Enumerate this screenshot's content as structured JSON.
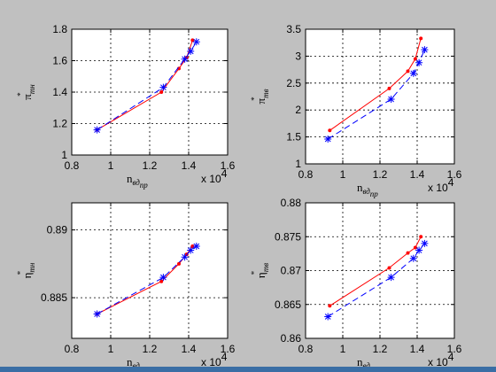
{
  "window": {
    "background": "#c0c0c0",
    "taskbar_color": "#3a6ea5"
  },
  "chart_data": [
    {
      "type": "line",
      "xlabel": "n",
      "xlabel_sub": "вд",
      "xlabel_sub2": "пр",
      "ylabel": "π",
      "ylabel_sup": "*",
      "ylabel_sub": "тн",
      "x_multiplier": "x 10",
      "x_multiplier_exp": "4",
      "xlim": [
        0.8,
        1.6
      ],
      "ylim": [
        1.0,
        1.8
      ],
      "xticks": [
        "0.8",
        "1",
        "1.2",
        "1.4",
        "1.6"
      ],
      "yticks": [
        "1",
        "1.2",
        "1.4",
        "1.6",
        "1.8"
      ],
      "grid": true,
      "series": [
        {
          "color": "#ff0000",
          "line_style": "solid",
          "marker": "dot",
          "x": [
            0.93,
            1.26,
            1.35,
            1.39,
            1.42
          ],
          "y": [
            1.16,
            1.4,
            1.55,
            1.62,
            1.73
          ]
        },
        {
          "color": "#0000ff",
          "line_style": "dashed",
          "marker": "star",
          "x": [
            0.93,
            1.27,
            1.38,
            1.41,
            1.44
          ],
          "y": [
            1.16,
            1.43,
            1.61,
            1.66,
            1.72
          ]
        }
      ]
    },
    {
      "type": "line",
      "xlabel": "n",
      "xlabel_sub": "вд",
      "xlabel_sub2": "пр",
      "ylabel": "π",
      "ylabel_sup": "*",
      "ylabel_sub": "тв",
      "x_multiplier": "x 10",
      "x_multiplier_exp": "4",
      "xlim": [
        0.8,
        1.6
      ],
      "ylim": [
        1.0,
        3.5
      ],
      "xticks": [
        "0.8",
        "1",
        "1.2",
        "1.4",
        "1.6"
      ],
      "yticks": [
        "1",
        "1.5",
        "2",
        "2.5",
        "3",
        "3.5"
      ],
      "grid": true,
      "series": [
        {
          "color": "#ff0000",
          "line_style": "solid",
          "marker": "dot",
          "x": [
            0.93,
            1.25,
            1.35,
            1.39,
            1.42
          ],
          "y": [
            1.62,
            2.4,
            2.72,
            2.95,
            3.33
          ]
        },
        {
          "color": "#0000ff",
          "line_style": "dashed",
          "marker": "star",
          "x": [
            0.92,
            1.26,
            1.38,
            1.41,
            1.44
          ],
          "y": [
            1.46,
            2.2,
            2.68,
            2.88,
            3.12
          ]
        }
      ]
    },
    {
      "type": "line",
      "xlabel": "n",
      "xlabel_sub": "вд",
      "xlabel_sub2": "пр",
      "ylabel": "η",
      "ylabel_sup": "*",
      "ylabel_sub": "тн",
      "x_multiplier": "x 10",
      "x_multiplier_exp": "4",
      "xlim": [
        0.8,
        1.6
      ],
      "ylim": [
        0.882,
        0.892
      ],
      "xticks": [
        "0.8",
        "1",
        "1.2",
        "1.4",
        "1.6"
      ],
      "yticks": [
        "0.885",
        "0.89"
      ],
      "ytick_values": [
        0.885,
        0.89
      ],
      "grid": true,
      "series": [
        {
          "color": "#ff0000",
          "line_style": "solid",
          "marker": "dot",
          "x": [
            0.93,
            1.26,
            1.35,
            1.39,
            1.42
          ],
          "y": [
            0.8838,
            0.8862,
            0.8875,
            0.8882,
            0.8888
          ]
        },
        {
          "color": "#0000ff",
          "line_style": "dashed",
          "marker": "star",
          "x": [
            0.93,
            1.27,
            1.38,
            1.41,
            1.44
          ],
          "y": [
            0.8838,
            0.8865,
            0.888,
            0.8885,
            0.8888
          ]
        }
      ]
    },
    {
      "type": "line",
      "xlabel": "n",
      "xlabel_sub": "вд",
      "xlabel_sub2": "пр",
      "ylabel": "η",
      "ylabel_sup": "*",
      "ylabel_sub": "тв",
      "x_multiplier": "x 10",
      "x_multiplier_exp": "4",
      "xlim": [
        0.8,
        1.6
      ],
      "ylim": [
        0.86,
        0.88
      ],
      "xticks": [
        "0.8",
        "1",
        "1.2",
        "1.4",
        "1.6"
      ],
      "yticks": [
        "0.86",
        "0.865",
        "0.87",
        "0.875",
        "0.88"
      ],
      "grid": true,
      "series": [
        {
          "color": "#ff0000",
          "line_style": "solid",
          "marker": "dot",
          "x": [
            0.93,
            1.25,
            1.35,
            1.39,
            1.42
          ],
          "y": [
            0.8648,
            0.8704,
            0.8726,
            0.8734,
            0.875
          ]
        },
        {
          "color": "#0000ff",
          "line_style": "dashed",
          "marker": "star",
          "x": [
            0.92,
            1.26,
            1.38,
            1.41,
            1.44
          ],
          "y": [
            0.8632,
            0.869,
            0.8718,
            0.873,
            0.874
          ]
        }
      ]
    }
  ]
}
